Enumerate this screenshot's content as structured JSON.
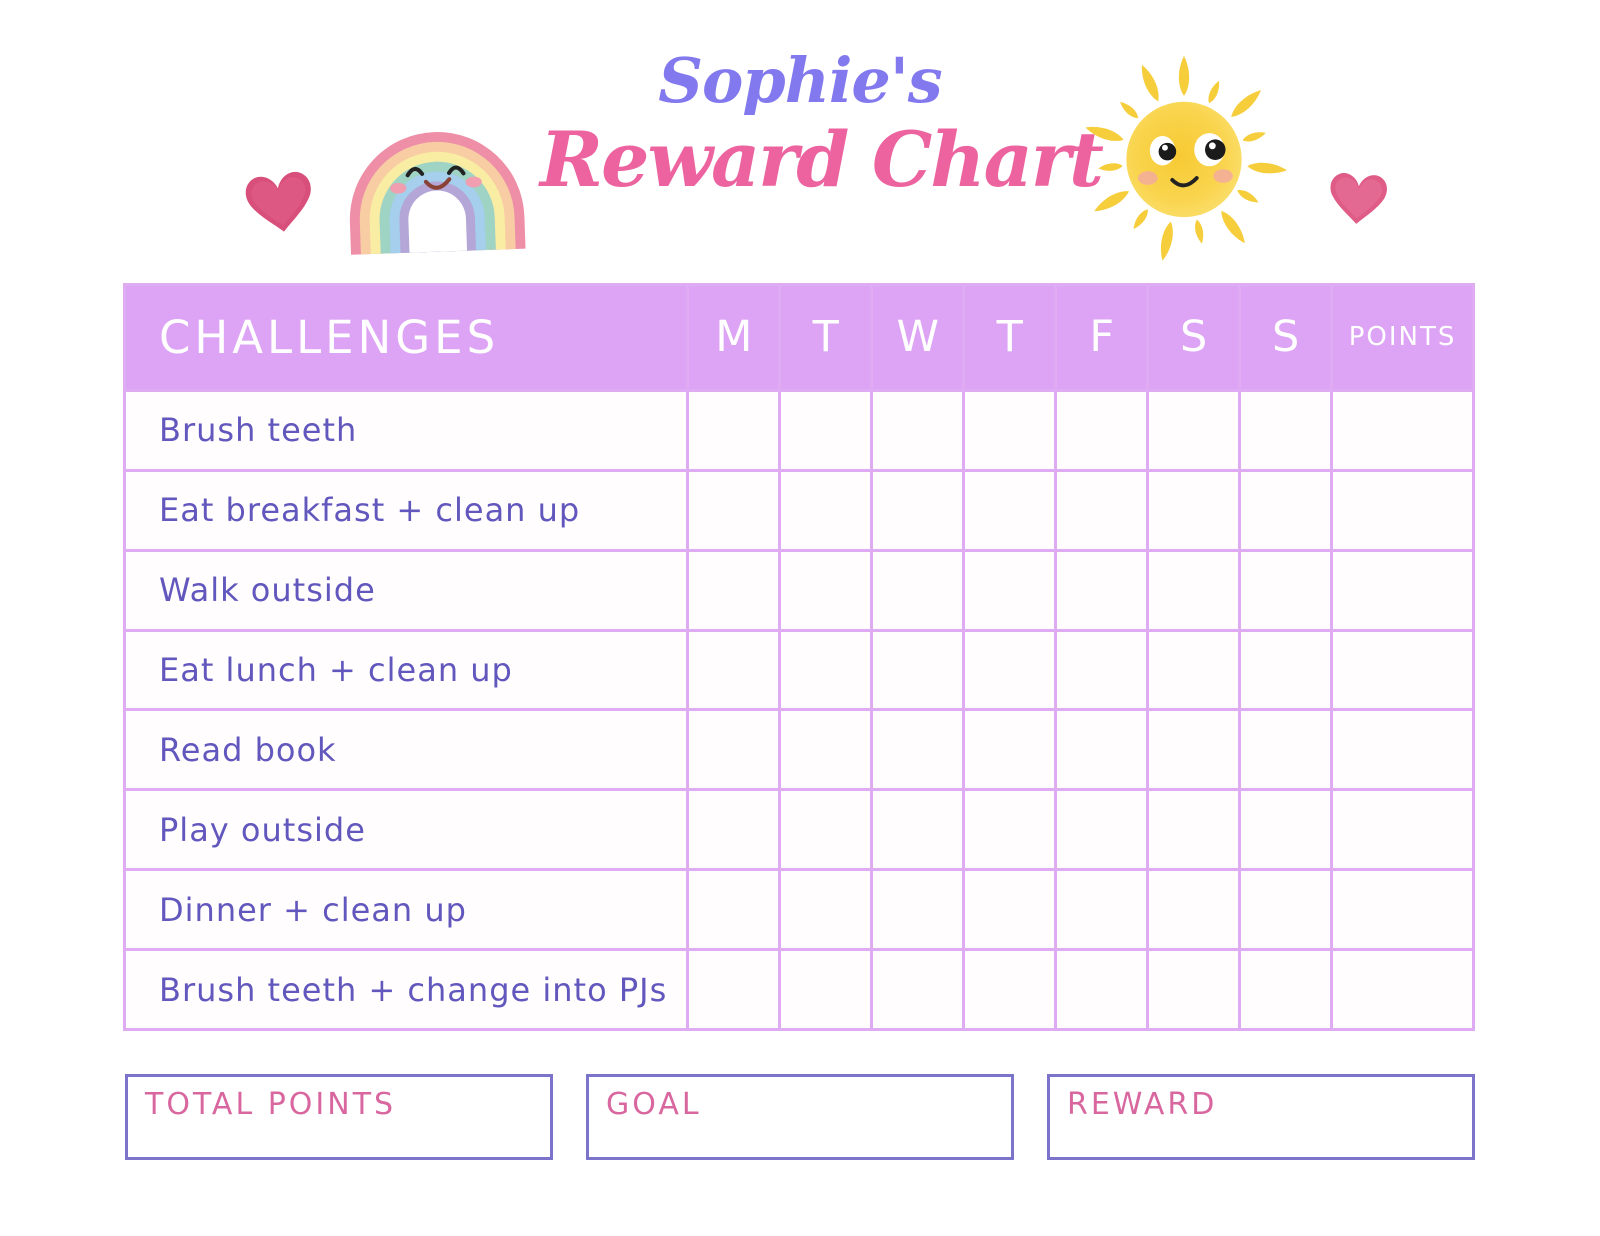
{
  "title": {
    "owner": "Sophie's",
    "heading": "Reward Chart"
  },
  "table": {
    "challenges_header": "CHALLENGES",
    "day_headers": [
      "M",
      "T",
      "W",
      "T",
      "F",
      "S",
      "S"
    ],
    "points_header": "POINTS",
    "challenges": [
      "Brush teeth",
      "Eat breakfast + clean up",
      "Walk outside",
      "Eat lunch + clean up",
      "Read book",
      "Play outside",
      "Dinner + clean up",
      "Brush teeth + change into PJs"
    ],
    "cell_values": []
  },
  "footer_boxes": [
    {
      "id": "total-points",
      "label": "TOTAL POINTS",
      "value": ""
    },
    {
      "id": "goal",
      "label": "GOAL",
      "value": ""
    },
    {
      "id": "reward",
      "label": "REWARD",
      "value": ""
    }
  ],
  "icons": {
    "left": "heart-icon",
    "center_left": "rainbow-icon",
    "center_right": "sun-icon",
    "right": "heart-icon"
  },
  "colors": {
    "header_band": "#dda4f5",
    "grid_line": "#dfabf2",
    "challenge_text": "#6157bd",
    "header_text": "#ffffff",
    "title_owner": "#8379ef",
    "title_heading": "#ec639f",
    "box_border": "#7c74cb",
    "box_label": "#d9679f",
    "heart_pink": "#dc5380",
    "sun_yellow": "#f8d04b"
  }
}
